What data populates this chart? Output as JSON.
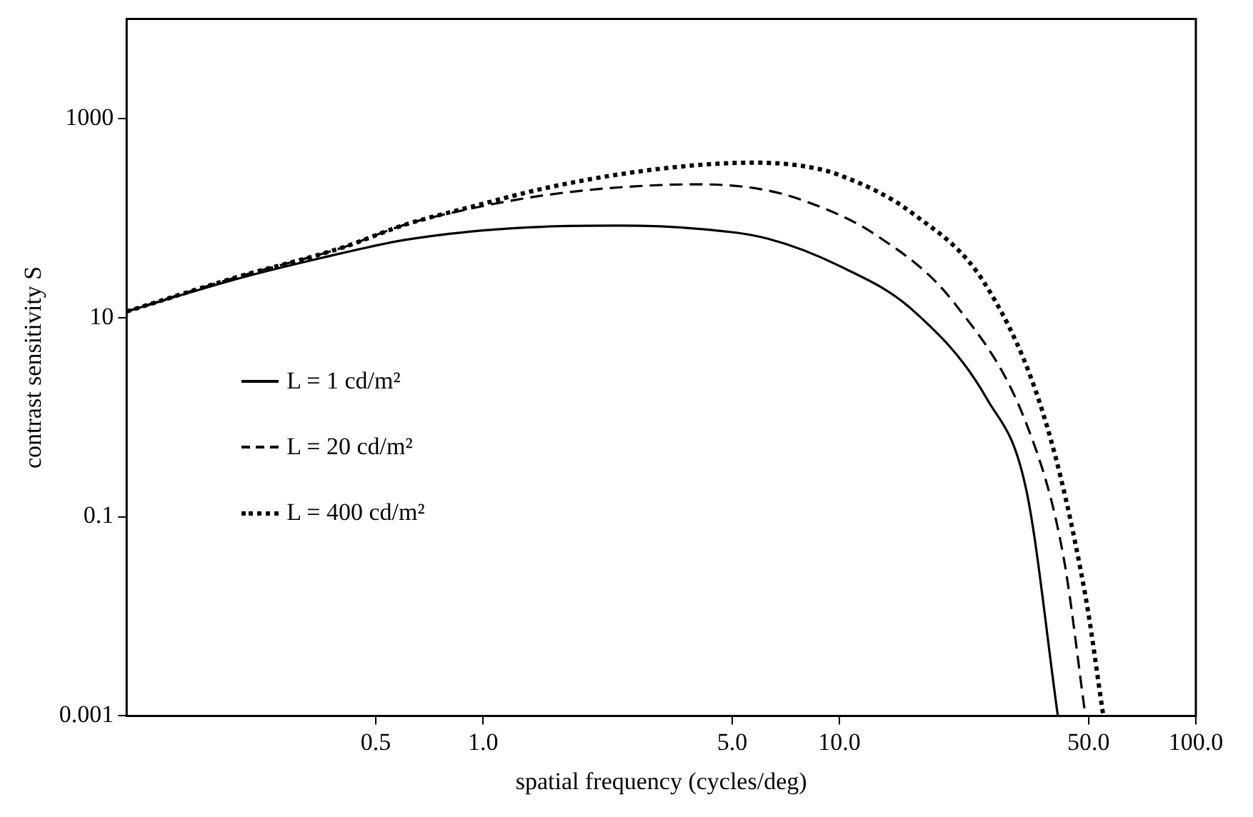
{
  "chart_data": {
    "type": "line",
    "xlabel": "spatial frequency (cycles/deg)",
    "ylabel": "contrast sensitivity S",
    "log": "xy",
    "xlim": [
      0.1,
      100
    ],
    "ylim": [
      0.001,
      10000
    ],
    "xticks": [
      {
        "value": 0.5,
        "label": "0.5"
      },
      {
        "value": 1,
        "label": "1.0"
      },
      {
        "value": 5,
        "label": "5.0"
      },
      {
        "value": 10,
        "label": "10.0"
      },
      {
        "value": 50,
        "label": "50.0"
      },
      {
        "value": 100,
        "label": "100.0"
      }
    ],
    "yticks": [
      0.001,
      0.1,
      10,
      1000
    ],
    "grid": false,
    "legend": "left",
    "marker": "none",
    "series": [
      {
        "name": "L = 1 cd/m²",
        "color": "#000000",
        "line_style": "solid",
        "x": [
          0.1,
          0.2,
          0.355,
          0.6,
          1,
          1.5,
          2.4,
          4,
          6.3,
          10,
          16,
          26,
          33.5,
          41
        ],
        "values": [
          11.5,
          24,
          40,
          60,
          75,
          82,
          84,
          78,
          62,
          33,
          12,
          1.5,
          0.18,
          0.001
        ]
      },
      {
        "name": "L = 20 cd/m²",
        "color": "#000000",
        "line_style": "dashed",
        "x": [
          0.1,
          0.2,
          0.4,
          0.6,
          0.93,
          1.5,
          2.5,
          4,
          6,
          8,
          12.7,
          21,
          34,
          42.5,
          49
        ],
        "values": [
          11.5,
          25,
          50,
          85,
          125,
          170,
          205,
          218,
          195,
          148,
          67,
          14,
          0.74,
          0.04,
          0.001
        ]
      },
      {
        "name": "L = 400 cd/m²",
        "color": "#000000",
        "line_style": "dotted",
        "x": [
          0.1,
          0.2,
          0.4,
          0.6,
          0.93,
          1.5,
          2.5,
          4,
          5.8,
          8,
          10,
          16,
          26,
          38,
          49,
          55
        ],
        "values": [
          11.5,
          25,
          50,
          85,
          130,
          200,
          280,
          340,
          360,
          330,
          270,
          112,
          20,
          0.87,
          0.016,
          0.001
        ]
      }
    ]
  }
}
